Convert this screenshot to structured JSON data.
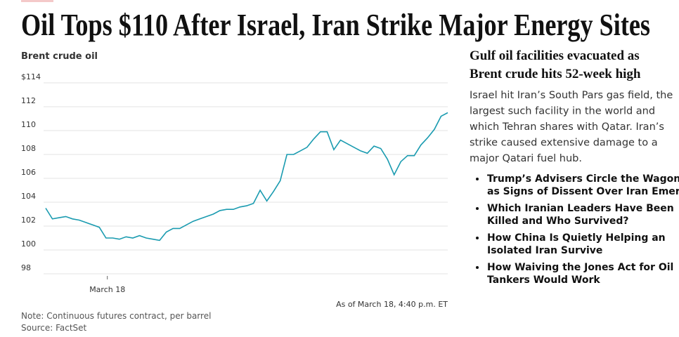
{
  "headline": "Oil Tops $110 After Israel, Iran Strike Major Energy Sites",
  "chart_data": {
    "type": "line",
    "title": "Brent crude oil",
    "xlim": [
      0,
      60
    ],
    "xticks": [
      {
        "value": 9.2,
        "label": "March 18"
      }
    ],
    "values": [
      103.5,
      102.6,
      102.7,
      102.8,
      102.6,
      102.5,
      102.3,
      102.1,
      101.9,
      101.0,
      101.0,
      100.9,
      101.1,
      101.0,
      101.2,
      101.0,
      100.9,
      100.8,
      101.5,
      101.8,
      101.8,
      102.1,
      102.4,
      102.6,
      102.8,
      103.0,
      103.3,
      103.4,
      103.4,
      103.6,
      103.7,
      103.9,
      105.0,
      104.1,
      104.9,
      105.8,
      108.0,
      108.0,
      108.3,
      108.6,
      109.3,
      109.9,
      109.9,
      108.4,
      109.2,
      108.9,
      108.6,
      108.3,
      108.1,
      108.7,
      108.5,
      107.6,
      106.3,
      107.4,
      107.9,
      107.9,
      108.8,
      109.4,
      110.1,
      111.2,
      111.5
    ],
    "color": "#1a9bb0",
    "ylim": [
      98,
      114
    ],
    "yticks": [
      98,
      100,
      102,
      104,
      106,
      108,
      110,
      112,
      {
        "value": 114,
        "label": "$114"
      }
    ],
    "grid": true,
    "timestamp": "As of March 18, 4:40 p.m. ET",
    "note": "Note: Continuous futures contract, per barrel",
    "source": "Source: FactSet"
  },
  "article": {
    "title": [
      "Gulf oil facilities evacuated as",
      "Brent crude hits 52-week high"
    ],
    "summary": [
      "Israel hit Iran’s South Pars gas field, the",
      "largest such facility in the world and",
      "which Tehran shares with Qatar. Iran’s",
      "strike caused extensive damage to a",
      "major Qatari fuel hub."
    ],
    "links": [
      [
        "Trump’s Advisers Circle the Wagons",
        "as Signs of Dissent Over Iran Emerge"
      ],
      [
        "Which Iranian Leaders Have Been",
        "Killed and Who Survived?"
      ],
      [
        "How China Is Quietly Helping an",
        "Isolated Iran Survive"
      ],
      [
        "How Waiving the Jones Act for Oil",
        "Tankers Would Work"
      ]
    ]
  }
}
